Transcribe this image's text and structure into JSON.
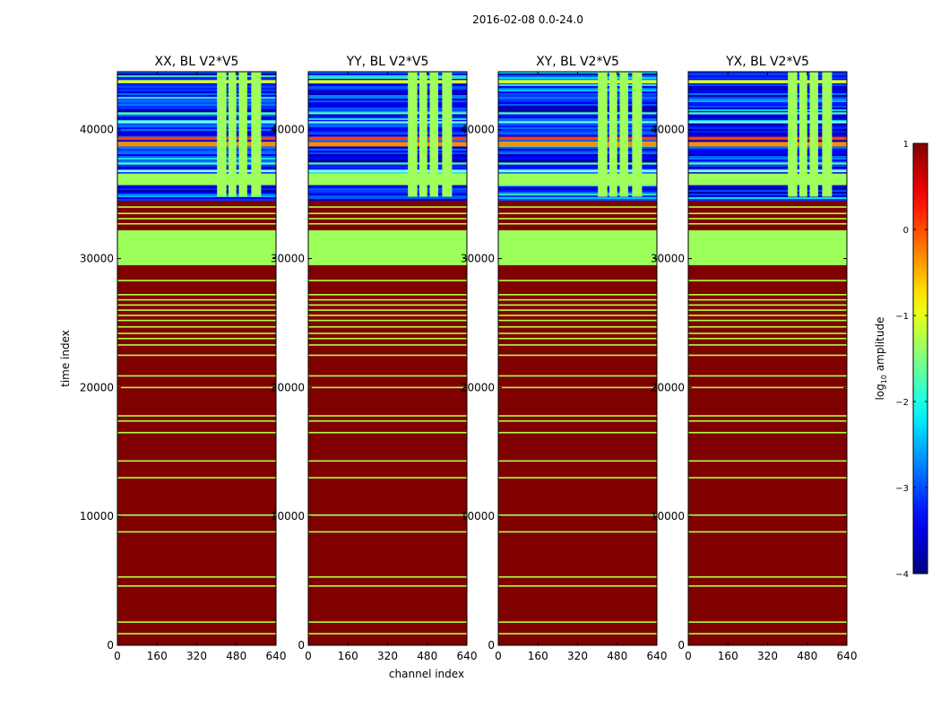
{
  "figure": {
    "suptitle": "2016-02-08 0.0-24.0",
    "ylabel": "time index",
    "xlabel": "channel index"
  },
  "chart_data": {
    "type": "heatmap",
    "xlim": [
      0,
      640
    ],
    "ylim": [
      0,
      44500
    ],
    "xticks": [
      0,
      160,
      320,
      480,
      640
    ],
    "yticks": [
      0,
      10000,
      20000,
      30000,
      40000
    ],
    "xtick_labels": [
      "0",
      "160",
      "320",
      "480",
      "640"
    ],
    "ytick_labels": [
      "0",
      "10000",
      "20000",
      "30000",
      "40000"
    ],
    "panels": [
      {
        "title": "XX, BL V2*V5",
        "label_xaxis": false
      },
      {
        "title": "YY, BL V2*V5",
        "label_xaxis": true
      },
      {
        "title": "XY, BL V2*V5",
        "label_xaxis": false
      },
      {
        "title": "YX, BL V2*V5",
        "label_xaxis": false
      }
    ],
    "bottom_region": {
      "y_from": 0,
      "y_to": 29500,
      "value": 1.0,
      "color": "#800000"
    },
    "bottom_stripes": {
      "value": -1.0,
      "color": "#b0ff40",
      "y": [
        900,
        1800,
        4600,
        5300,
        8800,
        10100,
        13000,
        14300,
        16500,
        17400,
        17800,
        20000,
        20900,
        22500,
        23300,
        23800,
        24200,
        24700,
        25200,
        25600,
        26000,
        26400,
        26800,
        27200,
        28300
      ]
    },
    "green_block": {
      "y_from": 29500,
      "y_to": 32200,
      "value": -1.2,
      "color": "#9cff5a"
    },
    "middle_region": {
      "y_from": 32200,
      "y_to": 34500,
      "value": 1.0,
      "color": "#800000"
    },
    "middle_stripes": {
      "value": -1.0,
      "color": "#b0ff40",
      "y": [
        32700,
        33100,
        33500,
        34000
      ]
    },
    "top_region": {
      "y_from": 34500,
      "y_to": 44500,
      "background_value": -3.3
    },
    "top_horizontal_bands": [
      {
        "y": 35700,
        "h": 900,
        "color": "#9cff5a"
      },
      {
        "y": 38700,
        "h": 350,
        "color": "#ff8c00"
      },
      {
        "y": 39200,
        "h": 250,
        "color": "#ff4000"
      },
      {
        "y": 43600,
        "h": 250,
        "color": "#d8ff30"
      },
      {
        "y": 36700,
        "h": 200,
        "color": "#7fffff"
      },
      {
        "y": 37300,
        "h": 150,
        "color": "#5cffa0"
      },
      {
        "y": 40500,
        "h": 150,
        "color": "#7fffff"
      },
      {
        "y": 41200,
        "h": 150,
        "color": "#5cffa0"
      }
    ],
    "top_vertical_bands": {
      "channels": [
        [
          402,
          440
        ],
        [
          448,
          480
        ],
        [
          490,
          524
        ],
        [
          540,
          580
        ]
      ],
      "y_from": 34800,
      "y_to": 44500,
      "color": "#a0ff5a"
    },
    "colorbar": {
      "label": "log10 amplitude",
      "label_base": "log",
      "label_sub": "10",
      "label_rest": " amplitude",
      "range": [
        -4,
        1
      ],
      "ticks": [
        1,
        0,
        -1,
        -2,
        -3,
        -4
      ],
      "tick_labels": [
        "1",
        "0",
        "−1",
        "−2",
        "−3",
        "−4"
      ],
      "colormap": "jet"
    }
  }
}
